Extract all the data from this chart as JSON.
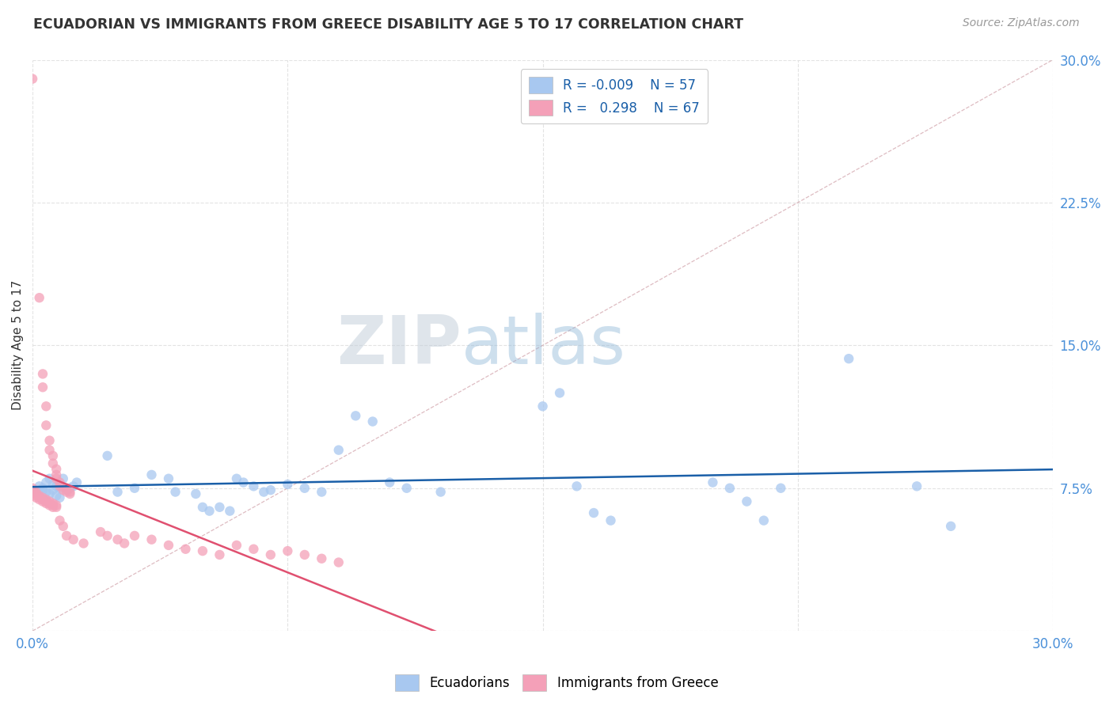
{
  "title": "ECUADORIAN VS IMMIGRANTS FROM GREECE DISABILITY AGE 5 TO 17 CORRELATION CHART",
  "source": "Source: ZipAtlas.com",
  "ylabel": "Disability Age 5 to 17",
  "xlim": [
    0.0,
    0.3
  ],
  "ylim": [
    0.0,
    0.3
  ],
  "watermark": "ZIPatlas",
  "legend_r_blue": "-0.009",
  "legend_n_blue": "57",
  "legend_r_pink": "0.298",
  "legend_n_pink": "67",
  "blue_color": "#a8c8f0",
  "pink_color": "#f4a0b8",
  "blue_line_color": "#1a5fa8",
  "pink_line_color": "#e05070",
  "diagonal_color": "#d0a0a8",
  "background_color": "#ffffff",
  "grid_color": "#e0e0e0",
  "title_color": "#333333",
  "axis_label_color": "#4a90d9",
  "blue_scatter": [
    [
      0.001,
      0.073
    ],
    [
      0.002,
      0.076
    ],
    [
      0.003,
      0.075
    ],
    [
      0.003,
      0.074
    ],
    [
      0.004,
      0.073
    ],
    [
      0.004,
      0.078
    ],
    [
      0.005,
      0.072
    ],
    [
      0.005,
      0.08
    ],
    [
      0.006,
      0.074
    ],
    [
      0.006,
      0.077
    ],
    [
      0.007,
      0.071
    ],
    [
      0.007,
      0.076
    ],
    [
      0.008,
      0.07
    ],
    [
      0.008,
      0.075
    ],
    [
      0.009,
      0.08
    ],
    [
      0.01,
      0.074
    ],
    [
      0.011,
      0.075
    ],
    [
      0.012,
      0.076
    ],
    [
      0.013,
      0.078
    ],
    [
      0.022,
      0.092
    ],
    [
      0.025,
      0.073
    ],
    [
      0.03,
      0.075
    ],
    [
      0.035,
      0.082
    ],
    [
      0.04,
      0.08
    ],
    [
      0.042,
      0.073
    ],
    [
      0.048,
      0.072
    ],
    [
      0.05,
      0.065
    ],
    [
      0.052,
      0.063
    ],
    [
      0.055,
      0.065
    ],
    [
      0.058,
      0.063
    ],
    [
      0.06,
      0.08
    ],
    [
      0.062,
      0.078
    ],
    [
      0.065,
      0.076
    ],
    [
      0.068,
      0.073
    ],
    [
      0.07,
      0.074
    ],
    [
      0.075,
      0.077
    ],
    [
      0.08,
      0.075
    ],
    [
      0.085,
      0.073
    ],
    [
      0.09,
      0.095
    ],
    [
      0.095,
      0.113
    ],
    [
      0.1,
      0.11
    ],
    [
      0.105,
      0.078
    ],
    [
      0.11,
      0.075
    ],
    [
      0.12,
      0.073
    ],
    [
      0.15,
      0.118
    ],
    [
      0.155,
      0.125
    ],
    [
      0.16,
      0.076
    ],
    [
      0.165,
      0.062
    ],
    [
      0.17,
      0.058
    ],
    [
      0.2,
      0.078
    ],
    [
      0.205,
      0.075
    ],
    [
      0.21,
      0.068
    ],
    [
      0.215,
      0.058
    ],
    [
      0.22,
      0.075
    ],
    [
      0.24,
      0.143
    ],
    [
      0.26,
      0.076
    ],
    [
      0.27,
      0.055
    ]
  ],
  "pink_scatter": [
    [
      0.0,
      0.29
    ],
    [
      0.002,
      0.175
    ],
    [
      0.003,
      0.135
    ],
    [
      0.003,
      0.128
    ],
    [
      0.004,
      0.118
    ],
    [
      0.004,
      0.108
    ],
    [
      0.005,
      0.1
    ],
    [
      0.005,
      0.095
    ],
    [
      0.006,
      0.092
    ],
    [
      0.006,
      0.088
    ],
    [
      0.007,
      0.085
    ],
    [
      0.007,
      0.082
    ],
    [
      0.007,
      0.08
    ],
    [
      0.008,
      0.078
    ],
    [
      0.008,
      0.076
    ],
    [
      0.009,
      0.074
    ],
    [
      0.01,
      0.075
    ],
    [
      0.01,
      0.073
    ],
    [
      0.011,
      0.073
    ],
    [
      0.011,
      0.072
    ],
    [
      0.001,
      0.073
    ],
    [
      0.001,
      0.072
    ],
    [
      0.001,
      0.07
    ],
    [
      0.002,
      0.071
    ],
    [
      0.002,
      0.07
    ],
    [
      0.002,
      0.069
    ],
    [
      0.003,
      0.07
    ],
    [
      0.003,
      0.069
    ],
    [
      0.003,
      0.068
    ],
    [
      0.004,
      0.069
    ],
    [
      0.004,
      0.068
    ],
    [
      0.004,
      0.067
    ],
    [
      0.005,
      0.068
    ],
    [
      0.005,
      0.067
    ],
    [
      0.005,
      0.066
    ],
    [
      0.006,
      0.067
    ],
    [
      0.006,
      0.066
    ],
    [
      0.006,
      0.065
    ],
    [
      0.007,
      0.066
    ],
    [
      0.007,
      0.065
    ],
    [
      0.0,
      0.075
    ],
    [
      0.0,
      0.074
    ],
    [
      0.0,
      0.073
    ],
    [
      0.0,
      0.072
    ],
    [
      0.0,
      0.071
    ],
    [
      0.008,
      0.058
    ],
    [
      0.009,
      0.055
    ],
    [
      0.01,
      0.05
    ],
    [
      0.012,
      0.048
    ],
    [
      0.015,
      0.046
    ],
    [
      0.02,
      0.052
    ],
    [
      0.022,
      0.05
    ],
    [
      0.025,
      0.048
    ],
    [
      0.027,
      0.046
    ],
    [
      0.03,
      0.05
    ],
    [
      0.035,
      0.048
    ],
    [
      0.04,
      0.045
    ],
    [
      0.045,
      0.043
    ],
    [
      0.05,
      0.042
    ],
    [
      0.055,
      0.04
    ],
    [
      0.06,
      0.045
    ],
    [
      0.065,
      0.043
    ],
    [
      0.07,
      0.04
    ],
    [
      0.075,
      0.042
    ],
    [
      0.08,
      0.04
    ],
    [
      0.085,
      0.038
    ],
    [
      0.09,
      0.036
    ]
  ]
}
